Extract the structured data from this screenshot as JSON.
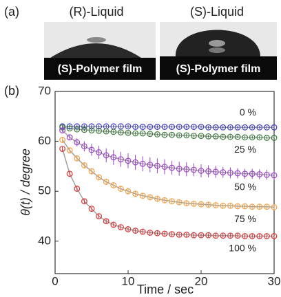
{
  "panel_a": {
    "label": "(a)",
    "left_liquid": "(R)-Liquid",
    "right_liquid": "(S)-Liquid",
    "left_film": "(S)-Polymer film",
    "right_film": "(S)-Polymer film"
  },
  "chart_data": {
    "type": "scatter",
    "panel_label": "(b)",
    "x_label": "Time / sec",
    "y_label": "θ(t) / degree",
    "xlim": [
      0,
      30
    ],
    "ylim": [
      33.5,
      70
    ],
    "xticks": [
      0,
      10,
      20,
      30
    ],
    "yticks": [
      40,
      50,
      60,
      70
    ],
    "fit_color": "#a0a0a0",
    "x": [
      1,
      2,
      3,
      4,
      5,
      6,
      7,
      8,
      9,
      10,
      11,
      12,
      13,
      14,
      15,
      16,
      17,
      18,
      19,
      20,
      21,
      22,
      23,
      24,
      25,
      26,
      27,
      28,
      29,
      30
    ],
    "series": [
      {
        "name": "0 %",
        "color": "#3b3bc8",
        "values": [
          63.0,
          63.0,
          63.0,
          63.0,
          63.0,
          63.0,
          63.0,
          63.0,
          63.0,
          63.0,
          62.9,
          62.9,
          62.9,
          62.9,
          62.9,
          62.9,
          62.9,
          62.9,
          62.9,
          62.9,
          62.8,
          62.8,
          62.8,
          62.8,
          62.8,
          62.8,
          62.8,
          62.8,
          62.8,
          62.8
        ],
        "errors": [
          0.3,
          0.3,
          0.3,
          0.3,
          0.3,
          0.3,
          0.3,
          0.3,
          0.3,
          0.3,
          0.3,
          0.3,
          0.3,
          0.3,
          0.3,
          0.3,
          0.3,
          0.3,
          0.3,
          0.3,
          0.3,
          0.3,
          0.3,
          0.3,
          0.3,
          0.3,
          0.3,
          0.3,
          0.3,
          0.3
        ]
      },
      {
        "name": "25 %",
        "color": "#3a7a3a",
        "values": [
          62.8,
          62.6,
          62.4,
          62.3,
          62.2,
          62.1,
          62.0,
          61.9,
          61.8,
          61.7,
          61.6,
          61.6,
          61.5,
          61.4,
          61.3,
          61.3,
          61.2,
          61.2,
          61.1,
          61.1,
          61.0,
          61.0,
          60.9,
          60.9,
          60.9,
          60.8,
          60.8,
          60.8,
          60.7,
          60.7
        ],
        "errors": [
          0.3,
          0.3,
          0.3,
          0.3,
          0.3,
          0.3,
          0.3,
          0.3,
          0.3,
          0.3,
          0.3,
          0.3,
          0.3,
          0.3,
          0.3,
          0.3,
          0.3,
          0.3,
          0.3,
          0.3,
          0.3,
          0.3,
          0.3,
          0.3,
          0.3,
          0.3,
          0.3,
          0.3,
          0.3,
          0.3
        ]
      },
      {
        "name": "50 %",
        "color": "#9b42c8",
        "values": [
          62.2,
          60.8,
          59.8,
          59.0,
          58.3,
          57.8,
          57.2,
          56.8,
          56.4,
          56.1,
          55.8,
          55.5,
          55.3,
          55.1,
          54.9,
          54.7,
          54.5,
          54.4,
          54.3,
          54.1,
          54.0,
          53.9,
          53.8,
          53.7,
          53.6,
          53.5,
          53.5,
          53.4,
          53.3,
          53.2
        ],
        "errors": [
          0.4,
          0.6,
          0.8,
          1.0,
          1.2,
          1.3,
          1.4,
          1.5,
          1.5,
          1.5,
          1.5,
          1.5,
          1.5,
          1.5,
          1.5,
          1.4,
          1.4,
          1.4,
          1.3,
          1.3,
          1.2,
          1.2,
          1.1,
          1.1,
          1.0,
          1.0,
          1.0,
          1.0,
          1.0,
          1.0
        ]
      },
      {
        "name": "75 %",
        "color": "#f4a045",
        "values": [
          60.3,
          58.2,
          56.6,
          55.2,
          54.0,
          52.8,
          51.9,
          51.2,
          50.5,
          50.0,
          49.5,
          49.1,
          48.8,
          48.5,
          48.2,
          48.0,
          47.8,
          47.6,
          47.5,
          47.4,
          47.3,
          47.2,
          47.1,
          47.1,
          47.0,
          47.0,
          46.9,
          46.9,
          46.9,
          46.8
        ],
        "errors": [
          0.6,
          0.6,
          0.6,
          0.6,
          0.6,
          0.6,
          0.6,
          0.6,
          0.6,
          0.6,
          0.6,
          0.6,
          0.6,
          0.6,
          0.6,
          0.6,
          0.6,
          0.6,
          0.6,
          0.6,
          0.6,
          0.6,
          0.6,
          0.6,
          0.6,
          0.6,
          0.6,
          0.6,
          0.6,
          0.6
        ]
      },
      {
        "name": "100 %",
        "color": "#d83232",
        "values": [
          58.5,
          53.5,
          50.5,
          48.0,
          46.5,
          45.0,
          44.0,
          43.3,
          42.8,
          42.4,
          42.1,
          41.9,
          41.7,
          41.6,
          41.5,
          41.4,
          41.3,
          41.3,
          41.2,
          41.2,
          41.2,
          41.1,
          41.1,
          41.1,
          41.1,
          41.0,
          41.0,
          41.0,
          41.0,
          41.0
        ],
        "errors": [
          0.4,
          0.4,
          0.4,
          0.4,
          0.4,
          0.4,
          0.4,
          0.4,
          0.4,
          0.4,
          0.4,
          0.4,
          0.4,
          0.4,
          0.4,
          0.4,
          0.4,
          0.4,
          0.4,
          0.4,
          0.4,
          0.4,
          0.4,
          0.4,
          0.4,
          0.4,
          0.4,
          0.4,
          0.4,
          0.4
        ]
      }
    ]
  }
}
